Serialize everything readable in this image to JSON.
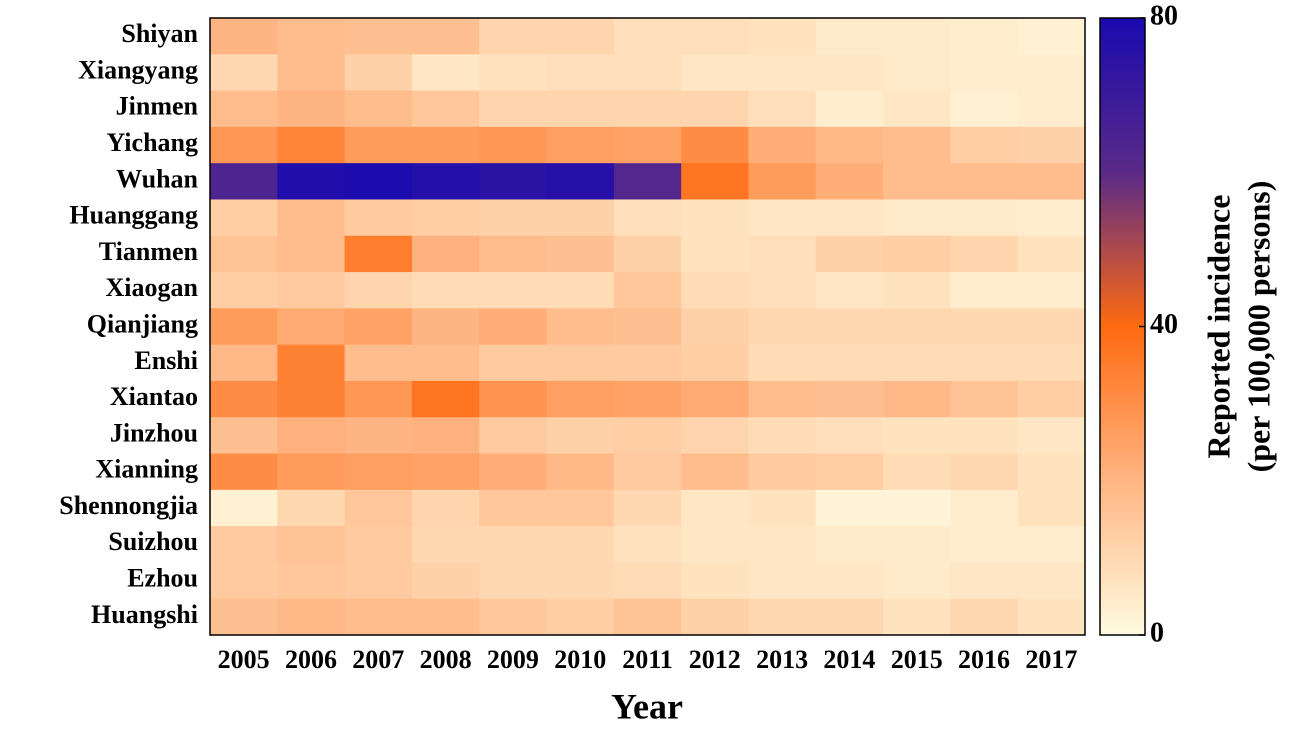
{
  "chart_data": {
    "type": "heatmap",
    "xlabel": "Year",
    "categories": [
      "2005",
      "2006",
      "2007",
      "2008",
      "2009",
      "2010",
      "2011",
      "2012",
      "2013",
      "2014",
      "2015",
      "2016",
      "2017"
    ],
    "rows": [
      "Shiyan",
      "Xiangyang",
      "Jinmen",
      "Yichang",
      "Wuhan",
      "Huanggang",
      "Tianmen",
      "Xiaogan",
      "Qianjiang",
      "Enshi",
      "Xiantao",
      "Jinzhou",
      "Xianning",
      "Shennongjia",
      "Suizhou",
      "Ezhou",
      "Huangshi"
    ],
    "values": [
      [
        20,
        18,
        17,
        17,
        11,
        11,
        8,
        8,
        7,
        5,
        5,
        4,
        3
      ],
      [
        10,
        18,
        12,
        6,
        7,
        8,
        8,
        6,
        6,
        6,
        5,
        4,
        4
      ],
      [
        18,
        20,
        18,
        15,
        11,
        11,
        11,
        11,
        8,
        4,
        6,
        3,
        4
      ],
      [
        28,
        33,
        27,
        27,
        28,
        26,
        25,
        31,
        22,
        19,
        18,
        13,
        12
      ],
      [
        64,
        78,
        79,
        77,
        75,
        76,
        62,
        37,
        27,
        22,
        18,
        18,
        18
      ],
      [
        13,
        18,
        14,
        13,
        12,
        12,
        8,
        7,
        6,
        6,
        5,
        5,
        4
      ],
      [
        16,
        18,
        35,
        21,
        18,
        17,
        12,
        7,
        8,
        12,
        13,
        11,
        7
      ],
      [
        13,
        14,
        11,
        9,
        9,
        9,
        15,
        9,
        8,
        6,
        7,
        4,
        4
      ],
      [
        27,
        23,
        25,
        20,
        22,
        18,
        17,
        12,
        10,
        10,
        10,
        10,
        10
      ],
      [
        19,
        34,
        18,
        18,
        14,
        14,
        14,
        13,
        9,
        9,
        9,
        9,
        9
      ],
      [
        31,
        34,
        28,
        37,
        29,
        26,
        25,
        23,
        18,
        17,
        19,
        16,
        13
      ],
      [
        17,
        21,
        20,
        21,
        14,
        12,
        13,
        11,
        9,
        8,
        7,
        7,
        6
      ],
      [
        31,
        27,
        26,
        25,
        22,
        19,
        14,
        18,
        14,
        13,
        9,
        10,
        7
      ],
      [
        3,
        10,
        15,
        11,
        15,
        15,
        10,
        6,
        7,
        2,
        2,
        4,
        7
      ],
      [
        14,
        16,
        14,
        10,
        10,
        10,
        7,
        6,
        6,
        5,
        5,
        4,
        4
      ],
      [
        14,
        15,
        14,
        12,
        10,
        10,
        9,
        7,
        6,
        6,
        5,
        6,
        6
      ],
      [
        17,
        19,
        18,
        18,
        15,
        13,
        16,
        12,
        10,
        10,
        7,
        10,
        7
      ]
    ],
    "zlim": [
      0,
      80
    ],
    "zticks": [
      0,
      40,
      80
    ],
    "colors": [
      "#fffbe0",
      "#ffb583",
      "#ff6a10",
      "#5a2a88",
      "#1a0aaf"
    ],
    "colorbar_label": [
      "Reported incidence",
      "(per 100,000 persons)"
    ]
  }
}
